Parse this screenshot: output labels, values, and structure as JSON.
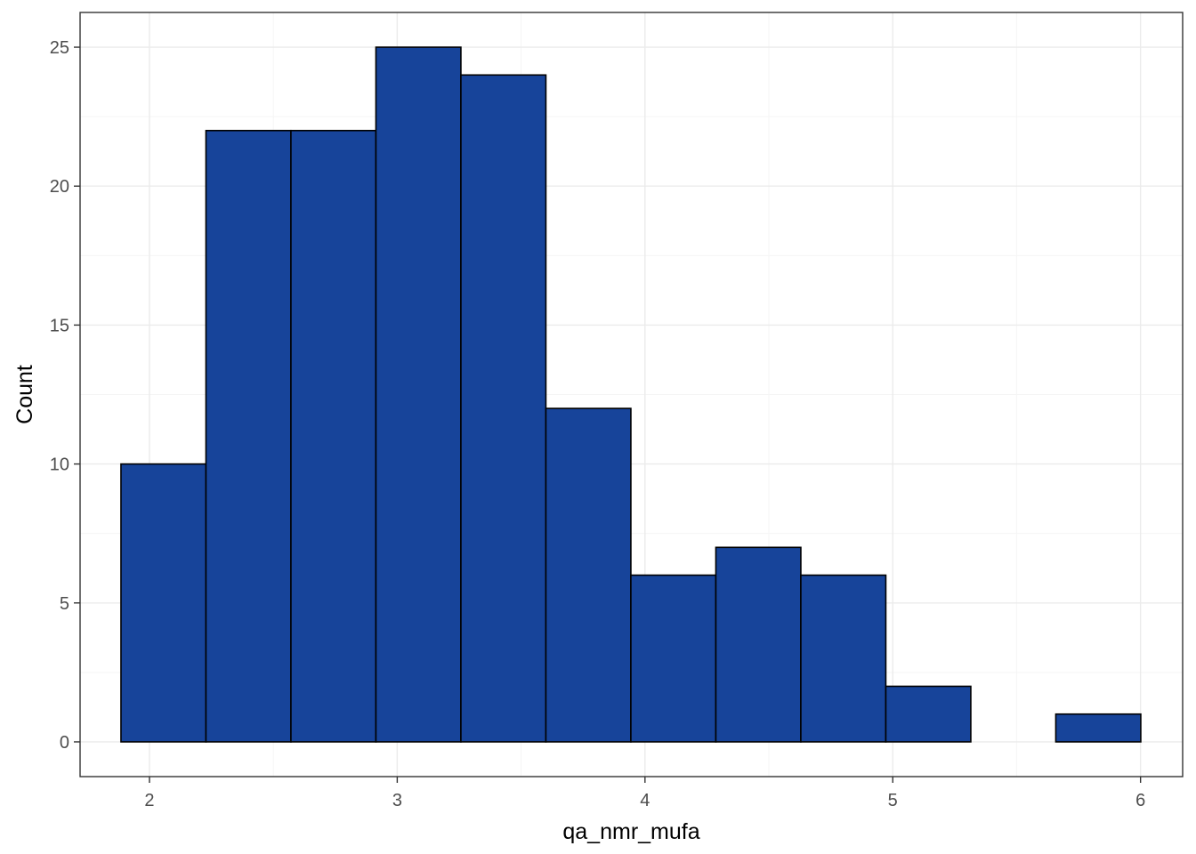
{
  "chart_data": {
    "type": "bar",
    "subtype": "histogram",
    "xlabel": "qa_nmr_mufa",
    "ylabel": "Count",
    "xlim": [
      1.72,
      6.17
    ],
    "ylim": [
      -1.25,
      26.25
    ],
    "x_ticks": [
      2,
      3,
      4,
      5,
      6
    ],
    "y_ticks": [
      0,
      5,
      10,
      15,
      20,
      25
    ],
    "grid": true,
    "bins": [
      {
        "x0": 1.885,
        "x1": 2.228,
        "count": 10
      },
      {
        "x0": 2.228,
        "x1": 2.571,
        "count": 22
      },
      {
        "x0": 2.571,
        "x1": 2.914,
        "count": 22
      },
      {
        "x0": 2.914,
        "x1": 3.257,
        "count": 25
      },
      {
        "x0": 3.257,
        "x1": 3.6,
        "count": 24
      },
      {
        "x0": 3.6,
        "x1": 3.943,
        "count": 12
      },
      {
        "x0": 3.943,
        "x1": 4.286,
        "count": 6
      },
      {
        "x0": 4.286,
        "x1": 4.629,
        "count": 7
      },
      {
        "x0": 4.629,
        "x1": 4.972,
        "count": 6
      },
      {
        "x0": 4.972,
        "x1": 5.315,
        "count": 2
      },
      {
        "x0": 5.315,
        "x1": 5.658,
        "count": 0
      },
      {
        "x0": 5.658,
        "x1": 6.001,
        "count": 1
      }
    ],
    "colors": {
      "fill": "#17449a",
      "stroke": "#000000",
      "grid_major": "#ebebeb",
      "grid_minor": "#f5f5f5",
      "panel_border": "#333333"
    }
  }
}
